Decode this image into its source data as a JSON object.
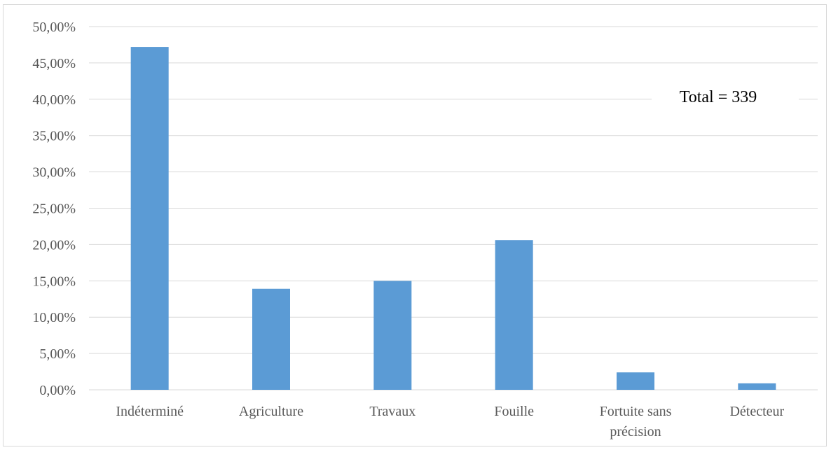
{
  "chart_data": {
    "type": "bar",
    "categories": [
      "Indéterminé",
      "Agriculture",
      "Travaux",
      "Fouille",
      "Fortuite sans précision",
      "Détecteur"
    ],
    "category_lines": [
      [
        "Indéterminé"
      ],
      [
        "Agriculture"
      ],
      [
        "Travaux"
      ],
      [
        "Fouille"
      ],
      [
        "Fortuite sans",
        "précision"
      ],
      [
        "Détecteur"
      ]
    ],
    "values": [
      47.2,
      13.9,
      15.0,
      20.6,
      2.4,
      0.9
    ],
    "ylim": [
      0,
      50
    ],
    "yticks": [
      0,
      5,
      10,
      15,
      20,
      25,
      30,
      35,
      40,
      45,
      50
    ],
    "ytick_labels": [
      "0,00%",
      "5,00%",
      "10,00%",
      "15,00%",
      "20,00%",
      "25,00%",
      "30,00%",
      "35,00%",
      "40,00%",
      "45,00%",
      "50,00%"
    ],
    "annotation": "Total = 339",
    "grid": true,
    "bar_color": "#5b9bd5",
    "grid_color": "#d9d9d9"
  }
}
